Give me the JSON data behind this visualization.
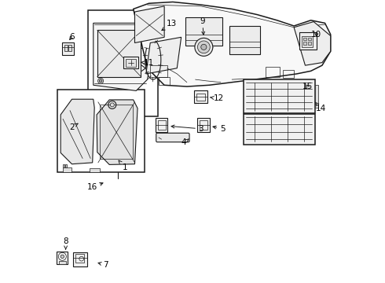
{
  "bg_color": "#ffffff",
  "line_color": "#1a1a1a",
  "label_color": "#000000",
  "figsize": [
    4.9,
    3.6
  ],
  "dpi": 100,
  "labels": {
    "1": [
      0.285,
      0.415,
      0.245,
      0.455
    ],
    "2": [
      0.082,
      0.555,
      0.115,
      0.575
    ],
    "3": [
      0.538,
      0.548,
      0.506,
      0.548
    ],
    "4": [
      0.475,
      0.5,
      0.485,
      0.515
    ],
    "5": [
      0.61,
      0.548,
      0.578,
      0.548
    ],
    "6": [
      0.082,
      0.87,
      0.082,
      0.84
    ],
    "7": [
      0.2,
      0.065,
      0.168,
      0.065
    ],
    "8": [
      0.056,
      0.148,
      0.056,
      0.118
    ],
    "9": [
      0.54,
      0.93,
      0.54,
      0.905
    ],
    "10": [
      0.945,
      0.88,
      0.928,
      0.88
    ],
    "11": [
      0.35,
      0.785,
      0.322,
      0.785
    ],
    "12": [
      0.6,
      0.655,
      0.572,
      0.66
    ],
    "13": [
      0.432,
      0.92,
      0.415,
      0.9
    ],
    "14": [
      0.96,
      0.62,
      0.948,
      0.63
    ],
    "15": [
      0.912,
      0.7,
      0.9,
      0.712
    ],
    "16": [
      0.148,
      0.34,
      0.192,
      0.36
    ]
  }
}
